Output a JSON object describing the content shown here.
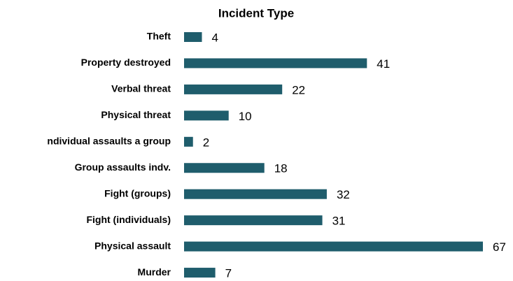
{
  "chart_data": {
    "type": "barh",
    "title": "Incident Type",
    "categories": [
      "Theft",
      "Property destroyed",
      "Verbal threat",
      "Physical threat",
      "ndividual assaults a group",
      "Group assaults indv.",
      "Fight (groups)",
      "Fight (individuals)",
      "Physical assault",
      "Murder"
    ],
    "values": [
      4,
      41,
      22,
      10,
      2,
      18,
      32,
      31,
      67,
      7
    ],
    "color": "#1f5d6c"
  }
}
